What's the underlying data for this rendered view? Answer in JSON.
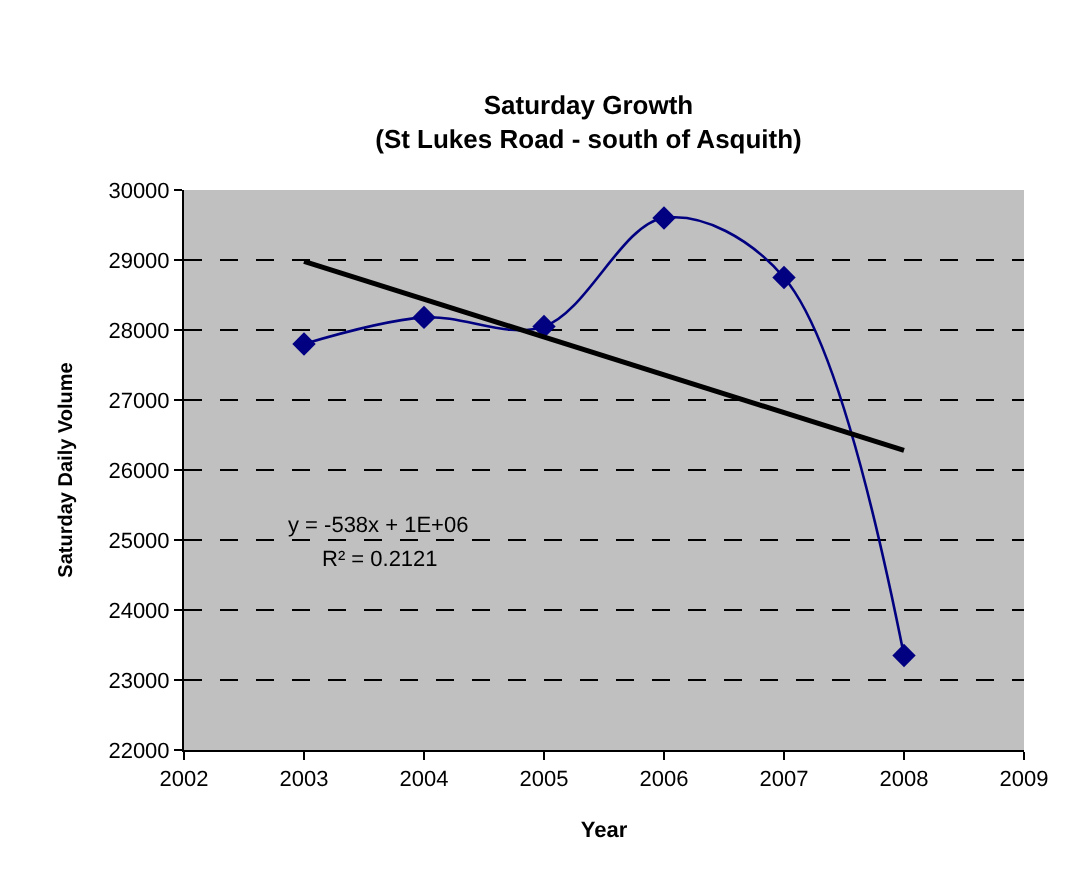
{
  "chart_data": {
    "type": "line",
    "title": "Saturday Growth",
    "subtitle": "(St Lukes Road - south of Asquith)",
    "xlabel": "Year",
    "ylabel": "Saturday Daily Volume",
    "x": [
      2003,
      2004,
      2005,
      2006,
      2007,
      2008
    ],
    "series": [
      {
        "color": "#000080",
        "values": [
          27800,
          28180,
          28050,
          29600,
          28750,
          23350
        ],
        "marker": "diamond"
      },
      {
        "color": "#000000",
        "x": [
          2003,
          2008
        ],
        "values": [
          28980,
          26280
        ],
        "marker": "none"
      }
    ],
    "xlim": [
      2002,
      2009
    ],
    "xticks": [
      2002,
      2003,
      2004,
      2005,
      2006,
      2007,
      2008,
      2009
    ],
    "ylim": [
      22000,
      30000
    ],
    "yticks": [
      22000,
      23000,
      24000,
      25000,
      26000,
      27000,
      28000,
      29000,
      30000
    ],
    "grid": "y",
    "line_style": "solid",
    "annotations": [
      "y = -538x + 1E+06",
      "R² = 0.2121"
    ]
  }
}
